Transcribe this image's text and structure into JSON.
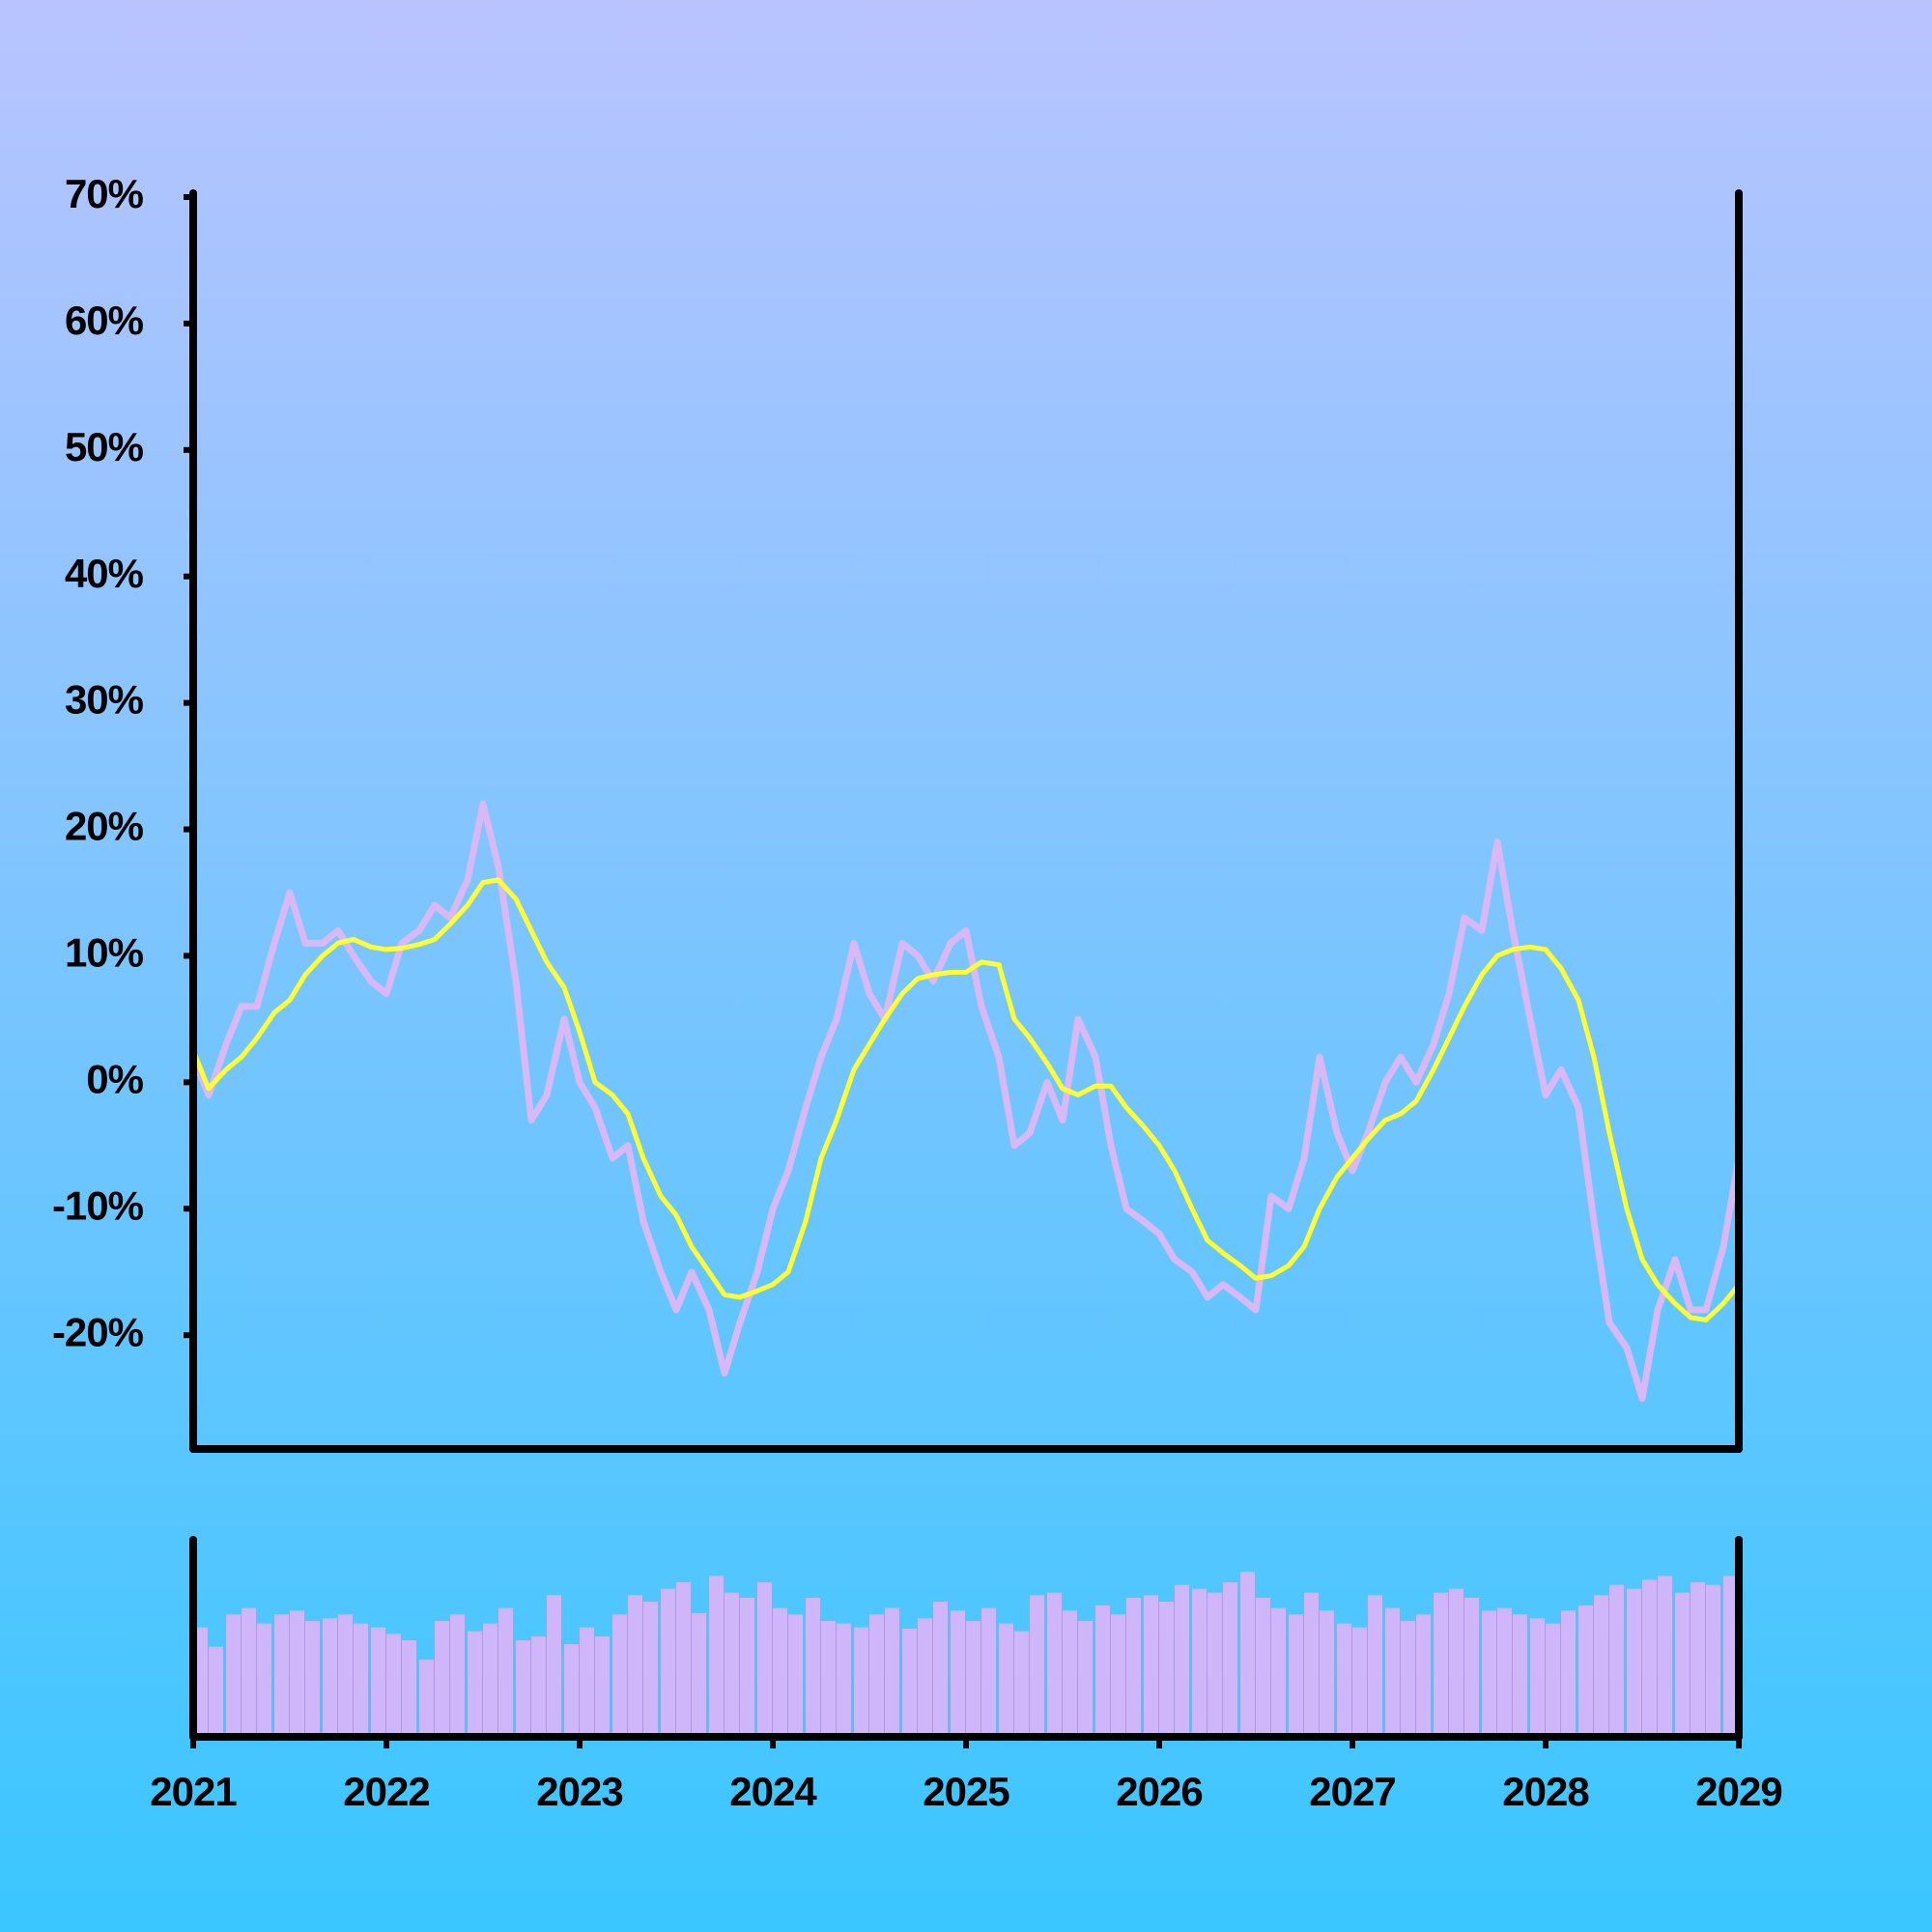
{
  "chart_data": [
    {
      "type": "line",
      "x": [
        2021,
        2021.08,
        2021.17,
        2021.25,
        2021.33,
        2021.42,
        2021.5,
        2021.58,
        2021.67,
        2021.75,
        2021.83,
        2021.92,
        2022,
        2022.08,
        2022.17,
        2022.25,
        2022.33,
        2022.42,
        2022.5,
        2022.58,
        2022.67,
        2022.75,
        2022.83,
        2022.92,
        2023,
        2023.08,
        2023.17,
        2023.25,
        2023.33,
        2023.42,
        2023.5,
        2023.58,
        2023.67,
        2023.75,
        2023.83,
        2023.92,
        2024,
        2024.08,
        2024.17,
        2024.25,
        2024.33,
        2024.42,
        2024.5,
        2024.58,
        2024.67,
        2024.75,
        2024.83,
        2024.92,
        2025,
        2025.08,
        2025.17,
        2025.25,
        2025.33,
        2025.42,
        2025.5,
        2025.58,
        2025.67,
        2025.75,
        2025.83,
        2025.92,
        2026,
        2026.08,
        2026.17,
        2026.25,
        2026.33,
        2026.42,
        2026.5,
        2026.58,
        2026.67,
        2026.75,
        2026.83,
        2026.92,
        2027,
        2027.08,
        2027.17,
        2027.25,
        2027.33,
        2027.42,
        2027.5,
        2027.58,
        2027.67,
        2027.75,
        2027.83,
        2027.92,
        2028,
        2028.08,
        2028.17,
        2028.25,
        2028.33,
        2028.42,
        2028.5,
        2028.58,
        2028.67,
        2028.75,
        2028.83,
        2028.92,
        2029
      ],
      "series": [
        {
          "color": "#d9b8f6",
          "values": [
            2,
            -1,
            3,
            6,
            6,
            11,
            15,
            11,
            11,
            12,
            10,
            8,
            7,
            11,
            12,
            14,
            13,
            16,
            22,
            17,
            8,
            -3,
            -1,
            5,
            0,
            -2,
            -6,
            -5,
            -11,
            -15,
            -18,
            -15,
            -18,
            -23,
            -19,
            -15,
            -10,
            -7,
            -2,
            2,
            5,
            11,
            7,
            5,
            11,
            10,
            8,
            11,
            12,
            6,
            2,
            -5,
            -4,
            0,
            -3,
            5,
            2,
            -5,
            -10,
            -11,
            -12,
            -14,
            -15,
            -17,
            -16,
            -17,
            -18,
            -9,
            -10,
            -6,
            2,
            -4,
            -7,
            -4,
            0,
            2,
            0,
            3,
            7,
            13,
            12,
            19,
            12,
            5,
            -1,
            1,
            -2,
            -11,
            -19,
            -21,
            -25,
            -18,
            -14,
            -18,
            -18,
            -13,
            -6
          ]
        },
        {
          "color": "#ffff33",
          "values": [
            2.5,
            -0.5,
            1,
            2,
            3.5,
            5.5,
            6.5,
            8.5,
            10,
            11,
            11.3,
            10.7,
            10.5,
            10.6,
            10.9,
            11.3,
            12.5,
            14,
            15.8,
            16,
            14.5,
            12,
            9.5,
            7.5,
            4,
            0,
            -1,
            -2.5,
            -6,
            -9,
            -10.5,
            -13,
            -15,
            -16.8,
            -17,
            -16.5,
            -16,
            -15,
            -11,
            -6,
            -3,
            1,
            3,
            5,
            7,
            8.2,
            8.5,
            8.7,
            8.7,
            9.5,
            9.3,
            5,
            3.5,
            1.5,
            -0.5,
            -1,
            -0.3,
            -0.3,
            -2,
            -3.5,
            -5,
            -7,
            -10,
            -12.5,
            -13.5,
            -14.5,
            -15.5,
            -15.3,
            -14.5,
            -13,
            -10,
            -7.5,
            -6,
            -4.5,
            -3,
            -2.5,
            -1.5,
            1,
            3.5,
            6,
            8.5,
            10,
            10.5,
            10.7,
            10.5,
            9,
            6.5,
            2,
            -4,
            -10,
            -14,
            -16,
            -17.5,
            -18.6,
            -18.8,
            -17.5,
            -16
          ]
        }
      ],
      "xlim": [
        2021,
        2029
      ],
      "ylim": [
        -29,
        70
      ],
      "yticks": [
        {
          "value": 70,
          "label": "70%"
        },
        {
          "value": 60,
          "label": "60%"
        },
        {
          "value": 50,
          "label": "50%"
        },
        {
          "value": 40,
          "label": "40%"
        },
        {
          "value": 30,
          "label": "30%"
        },
        {
          "value": 20,
          "label": "20%"
        },
        {
          "value": 10,
          "label": "10%"
        },
        {
          "value": 0,
          "label": "0%"
        },
        {
          "value": -10,
          "label": "-10%"
        },
        {
          "value": -20,
          "label": "-20%"
        }
      ]
    },
    {
      "type": "bar",
      "color": "#cfb6fb",
      "x": [
        2021,
        2021.08,
        2021.17,
        2021.25,
        2021.33,
        2021.42,
        2021.5,
        2021.58,
        2021.67,
        2021.75,
        2021.83,
        2021.92,
        2022,
        2022.08,
        2022.17,
        2022.25,
        2022.33,
        2022.42,
        2022.5,
        2022.58,
        2022.67,
        2022.75,
        2022.83,
        2022.92,
        2023,
        2023.08,
        2023.17,
        2023.25,
        2023.33,
        2023.42,
        2023.5,
        2023.58,
        2023.67,
        2023.75,
        2023.83,
        2023.92,
        2024,
        2024.08,
        2024.17,
        2024.25,
        2024.33,
        2024.42,
        2024.5,
        2024.58,
        2024.67,
        2024.75,
        2024.83,
        2024.92,
        2025,
        2025.08,
        2025.17,
        2025.25,
        2025.33,
        2025.42,
        2025.5,
        2025.58,
        2025.67,
        2025.75,
        2025.83,
        2025.92,
        2026,
        2026.08,
        2026.17,
        2026.25,
        2026.33,
        2026.42,
        2026.5,
        2026.58,
        2026.67,
        2026.75,
        2026.83,
        2026.92,
        2027,
        2027.08,
        2027.17,
        2027.25,
        2027.33,
        2027.42,
        2027.5,
        2027.58,
        2027.67,
        2027.75,
        2027.83,
        2027.92,
        2028,
        2028.08,
        2028.17,
        2028.25,
        2028.33,
        2028.42,
        2028.5,
        2028.58,
        2028.67,
        2028.75,
        2028.83,
        2028.92,
        2029
      ],
      "values": [
        85,
        70,
        95,
        100,
        88,
        95,
        98,
        90,
        92,
        95,
        88,
        85,
        80,
        75,
        60,
        90,
        95,
        82,
        88,
        100,
        75,
        78,
        110,
        72,
        85,
        78,
        95,
        110,
        105,
        115,
        120,
        96,
        125,
        112,
        108,
        120,
        100,
        95,
        108,
        90,
        88,
        85,
        95,
        100,
        84,
        92,
        105,
        98,
        90,
        100,
        88,
        82,
        110,
        112,
        98,
        90,
        102,
        95,
        108,
        110,
        105,
        118,
        115,
        112,
        120,
        128,
        108,
        100,
        95,
        112,
        98,
        88,
        85,
        110,
        100,
        90,
        95,
        112,
        115,
        108,
        98,
        100,
        95,
        92,
        88,
        98,
        102,
        110,
        118,
        115,
        122,
        125,
        112,
        120,
        118,
        125,
        115
      ],
      "xlim": [
        2021,
        2029
      ],
      "ylim": [
        0,
        150
      ],
      "xticks": [
        2021,
        2022,
        2023,
        2024,
        2025,
        2026,
        2027,
        2028,
        2029
      ]
    }
  ]
}
